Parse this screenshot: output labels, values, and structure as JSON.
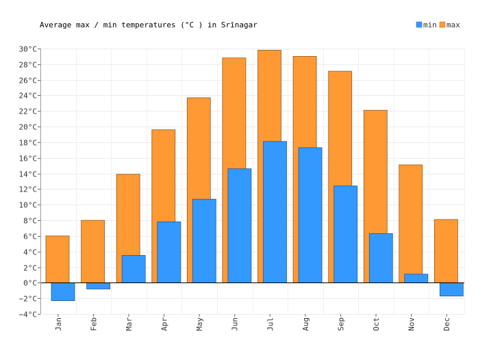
{
  "chart_data": {
    "type": "bar",
    "title": "Average max / min temperatures (°C ) in Srīnagar",
    "categories": [
      "Jan",
      "Feb",
      "Mar",
      "Apr",
      "May",
      "Jun",
      "Jul",
      "Aug",
      "Sep",
      "Oct",
      "Nov",
      "Dec"
    ],
    "series": [
      {
        "name": "min",
        "color": "#3399ff",
        "values": [
          -2.3,
          -0.8,
          3.5,
          7.8,
          10.7,
          14.6,
          18.1,
          17.3,
          12.4,
          6.3,
          1.1,
          -1.7
        ]
      },
      {
        "name": "max",
        "color": "#ff9933",
        "values": [
          6.0,
          8.0,
          13.9,
          19.6,
          23.7,
          28.8,
          29.8,
          29.0,
          27.1,
          22.1,
          15.1,
          8.1
        ]
      }
    ],
    "y_ticks": [
      "30°C",
      "28°C",
      "26°C",
      "24°C",
      "22°C",
      "20°C",
      "18°C",
      "16°C",
      "14°C",
      "12°C",
      "10°C",
      "8°C",
      "6°C",
      "4°C",
      "2°C",
      "0°C",
      "−2°C",
      "−4°C"
    ],
    "ylim": [
      -4,
      30
    ],
    "grid": true,
    "legend": "top-right"
  }
}
